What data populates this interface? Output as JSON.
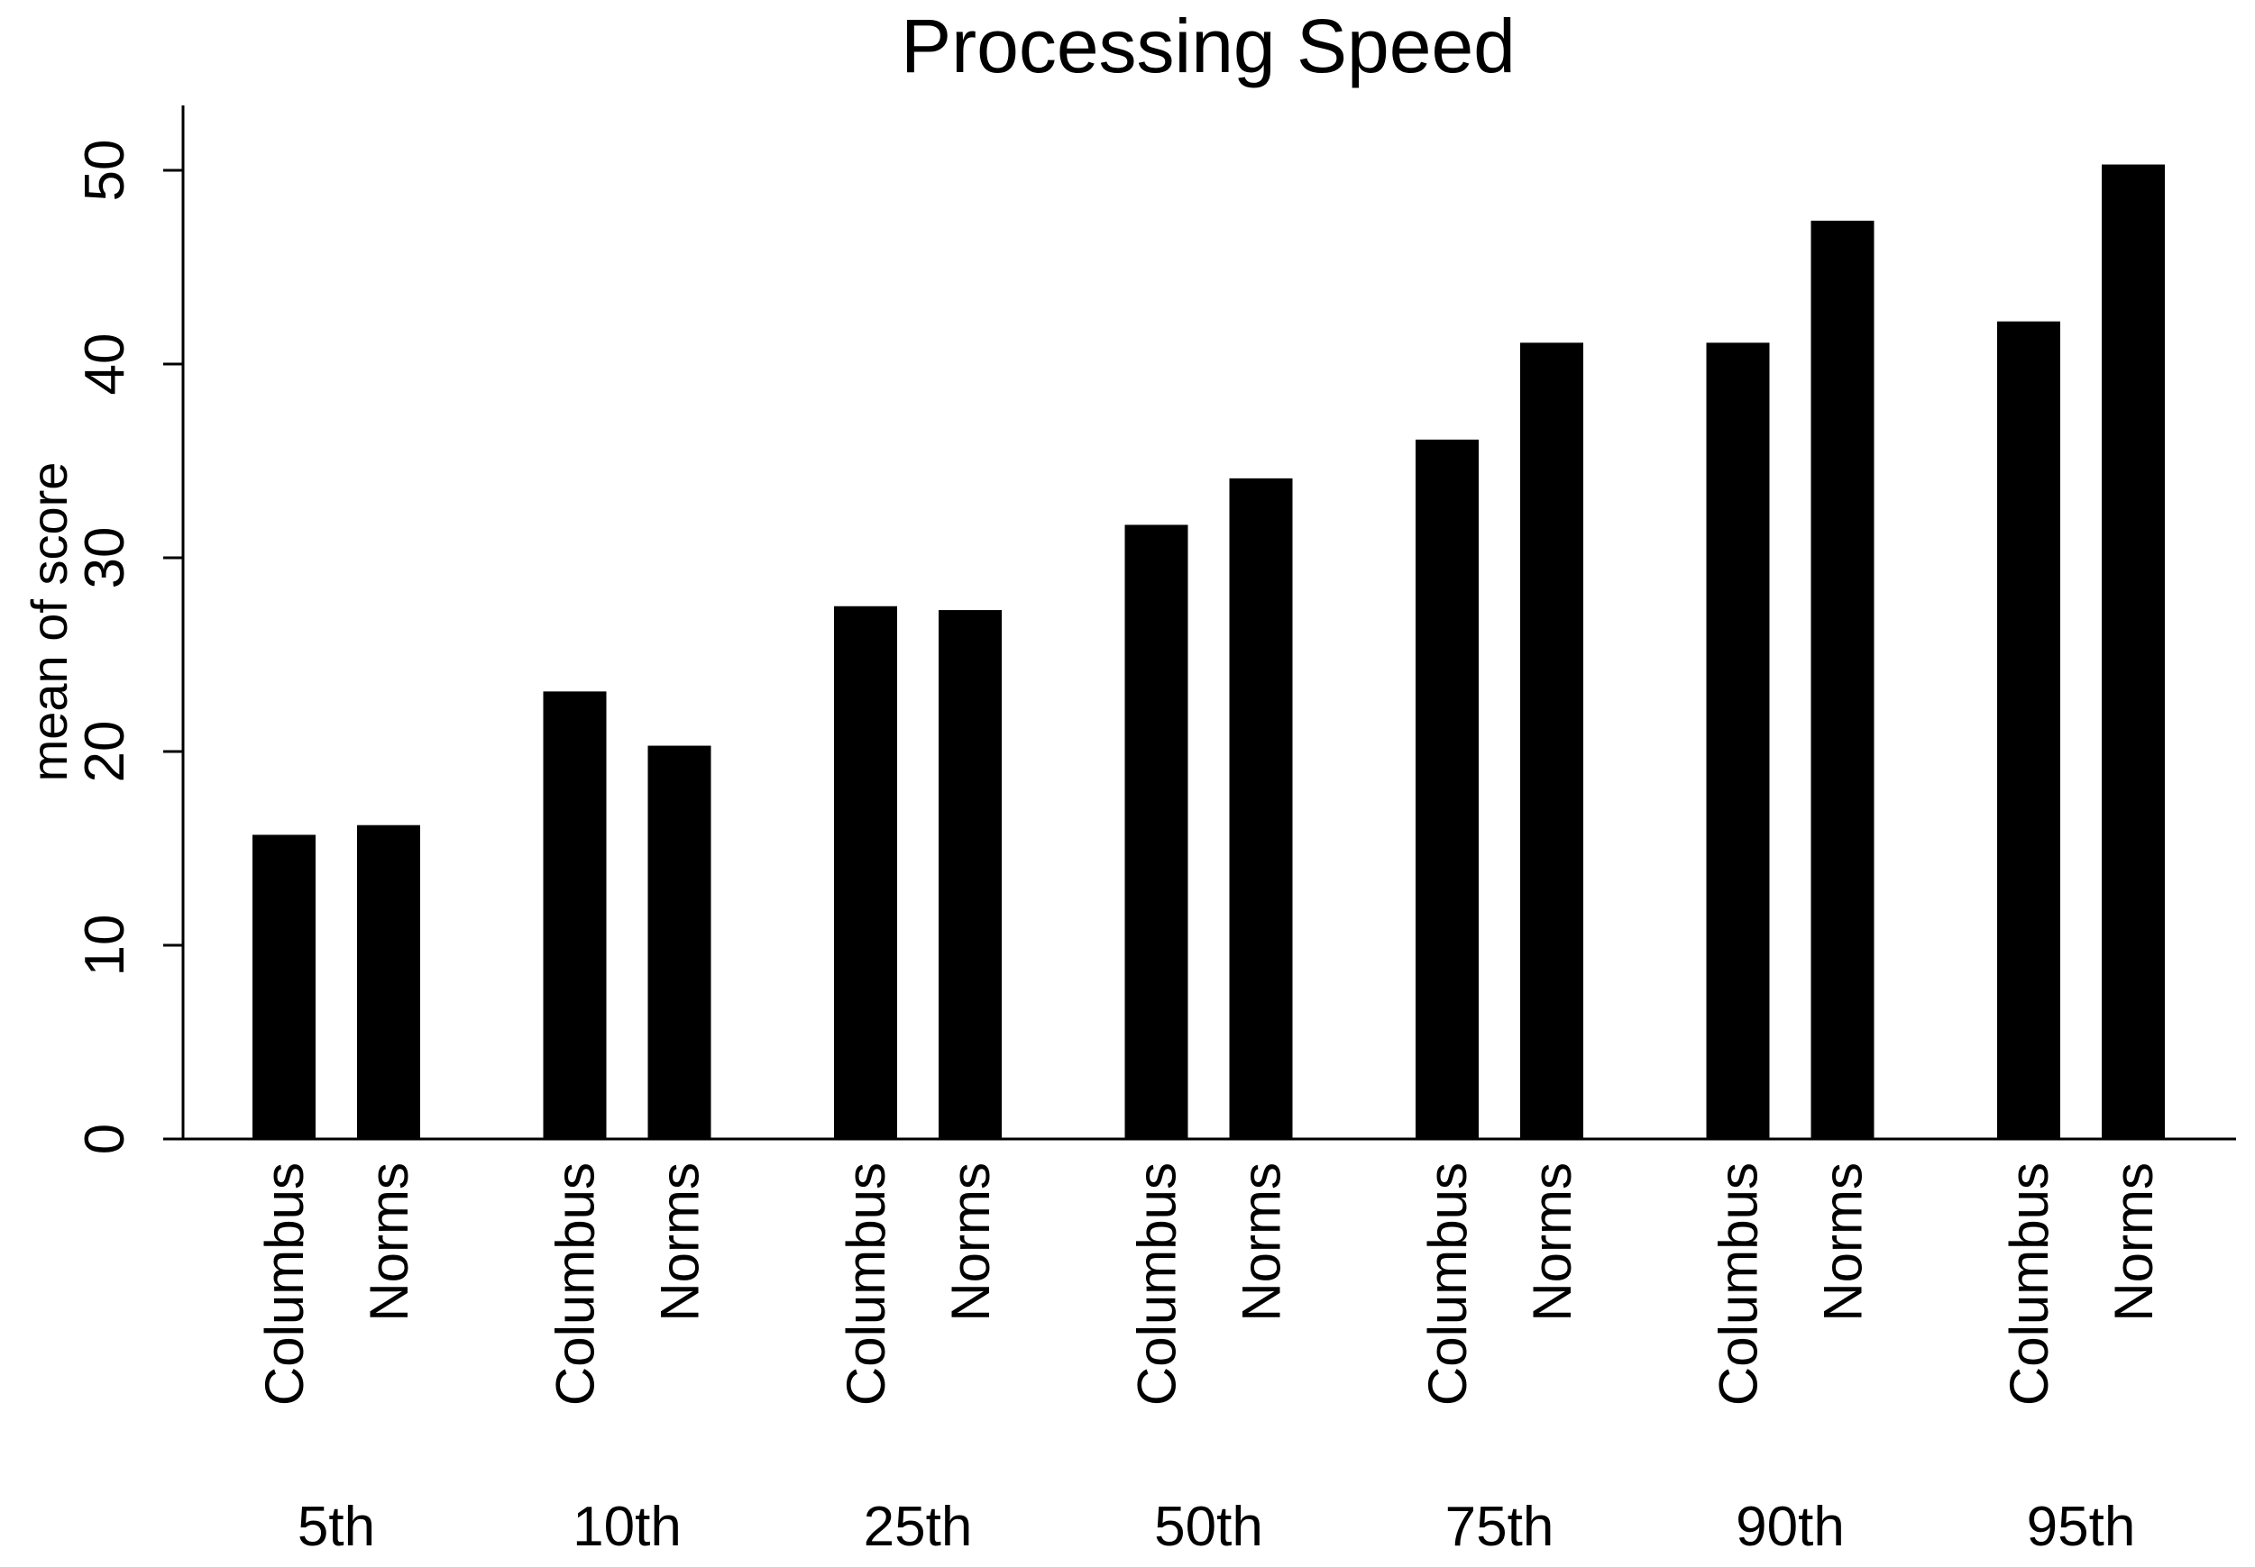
{
  "chart_data": {
    "type": "bar",
    "title": "Processing Speed",
    "xlabel": "",
    "ylabel": "mean of score",
    "ylim": [
      0,
      53
    ],
    "yticks": [
      0,
      10,
      20,
      30,
      40,
      50
    ],
    "y_tick_labels": [
      "0",
      "10",
      "20",
      "30",
      "40",
      "50"
    ],
    "grid": false,
    "legend": "none",
    "bar_color": "#000000",
    "groups": [
      "5th",
      "10th",
      "25th",
      "50th",
      "75th",
      "90th",
      "95th"
    ],
    "subcategories": [
      "Columbus",
      "Norms"
    ],
    "series": [
      {
        "values": [
          15.7,
          23.1,
          27.5,
          31.7,
          36.1,
          41.1,
          42.2
        ]
      },
      {
        "values": [
          16.2,
          20.3,
          27.3,
          34.1,
          41.1,
          47.4,
          50.3
        ]
      }
    ]
  }
}
